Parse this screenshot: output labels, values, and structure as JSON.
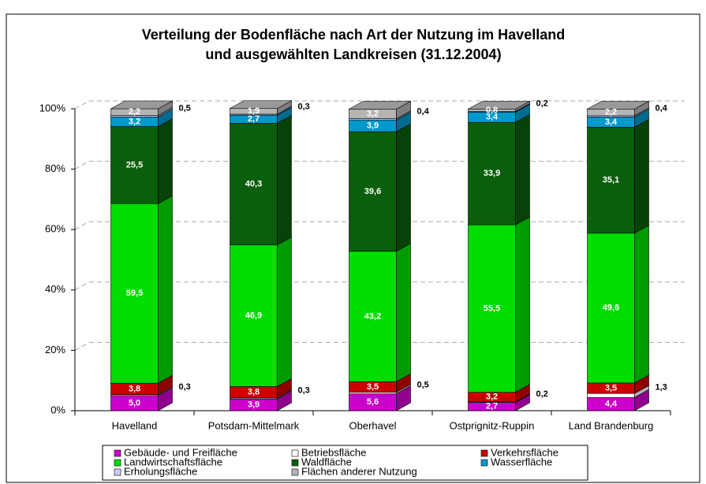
{
  "chart_data": {
    "type": "stacked-bar-3d",
    "title": [
      "Verteilung der Bodenfläche nach Art der Nutzung im Havelland",
      "und ausgewählten Landkreisen (31.12.2004)"
    ],
    "categories": [
      "Havelland",
      "Potsdam-Mittelmark",
      "Oberhavel",
      "Ostprignitz-Ruppin",
      "Land Brandenburg"
    ],
    "ylim": [
      0,
      100
    ],
    "yticks": [
      {
        "value": 0,
        "label": "0%"
      },
      {
        "value": 20,
        "label": "20%"
      },
      {
        "value": 40,
        "label": "40%"
      },
      {
        "value": 60,
        "label": "60%"
      },
      {
        "value": 80,
        "label": "80%"
      },
      {
        "value": 100,
        "label": "100%"
      }
    ],
    "grid": true,
    "series": [
      {
        "name": "Gebäude- und Freifläche",
        "color": "#cc00cc",
        "values": [
          5.0,
          3.9,
          5.6,
          2.7,
          4.4
        ],
        "value_labels": [
          "5,0",
          "3,9",
          "5,6",
          "2,7",
          "4,4"
        ]
      },
      {
        "name": "Betriebsfläche",
        "color": "#ffffff",
        "label_outside": true,
        "values": [
          0.3,
          0.3,
          0.5,
          0.2,
          1.3
        ],
        "value_labels": [
          "0,3",
          "0,3",
          "0,5",
          "0,2",
          "1,3"
        ]
      },
      {
        "name": "Verkehrsfläche",
        "color": "#cc0000",
        "values": [
          3.8,
          3.8,
          3.5,
          3.2,
          3.5
        ],
        "value_labels": [
          "3,8",
          "3,8",
          "3,5",
          "3,2",
          "3,5"
        ]
      },
      {
        "name": "Landwirtschaftsfläche",
        "color": "#00dd00",
        "values": [
          59.5,
          46.9,
          43.2,
          55.5,
          49.6
        ],
        "value_labels": [
          "59,5",
          "46,9",
          "43,2",
          "55,5",
          "49,6"
        ]
      },
      {
        "name": "Waldfläche",
        "color": "#0b5e0b",
        "values": [
          25.5,
          40.3,
          39.6,
          33.9,
          35.1
        ],
        "value_labels": [
          "25,5",
          "40,3",
          "39,6",
          "33,9",
          "35,1"
        ]
      },
      {
        "name": "Wasserfläche",
        "color": "#0099cc",
        "values": [
          3.2,
          2.7,
          3.9,
          3.4,
          3.4
        ],
        "value_labels": [
          "3,2",
          "2,7",
          "3,9",
          "3,4",
          "3,4"
        ]
      },
      {
        "name": "Erholungsfläche",
        "color": "#ccccff",
        "label_outside": true,
        "values": [
          0.5,
          0.3,
          0.4,
          0.2,
          0.4
        ],
        "value_labels": [
          "0,5",
          "0,3",
          "0,4",
          "0,2",
          "0,4"
        ]
      },
      {
        "name": "Flächen anderer Nutzung",
        "color": "#b4b4b4",
        "values": [
          2.2,
          1.9,
          3.2,
          0.8,
          2.2
        ],
        "value_labels": [
          "2,2",
          "1,9",
          "3,2",
          "0,8",
          "2,2"
        ]
      }
    ]
  }
}
